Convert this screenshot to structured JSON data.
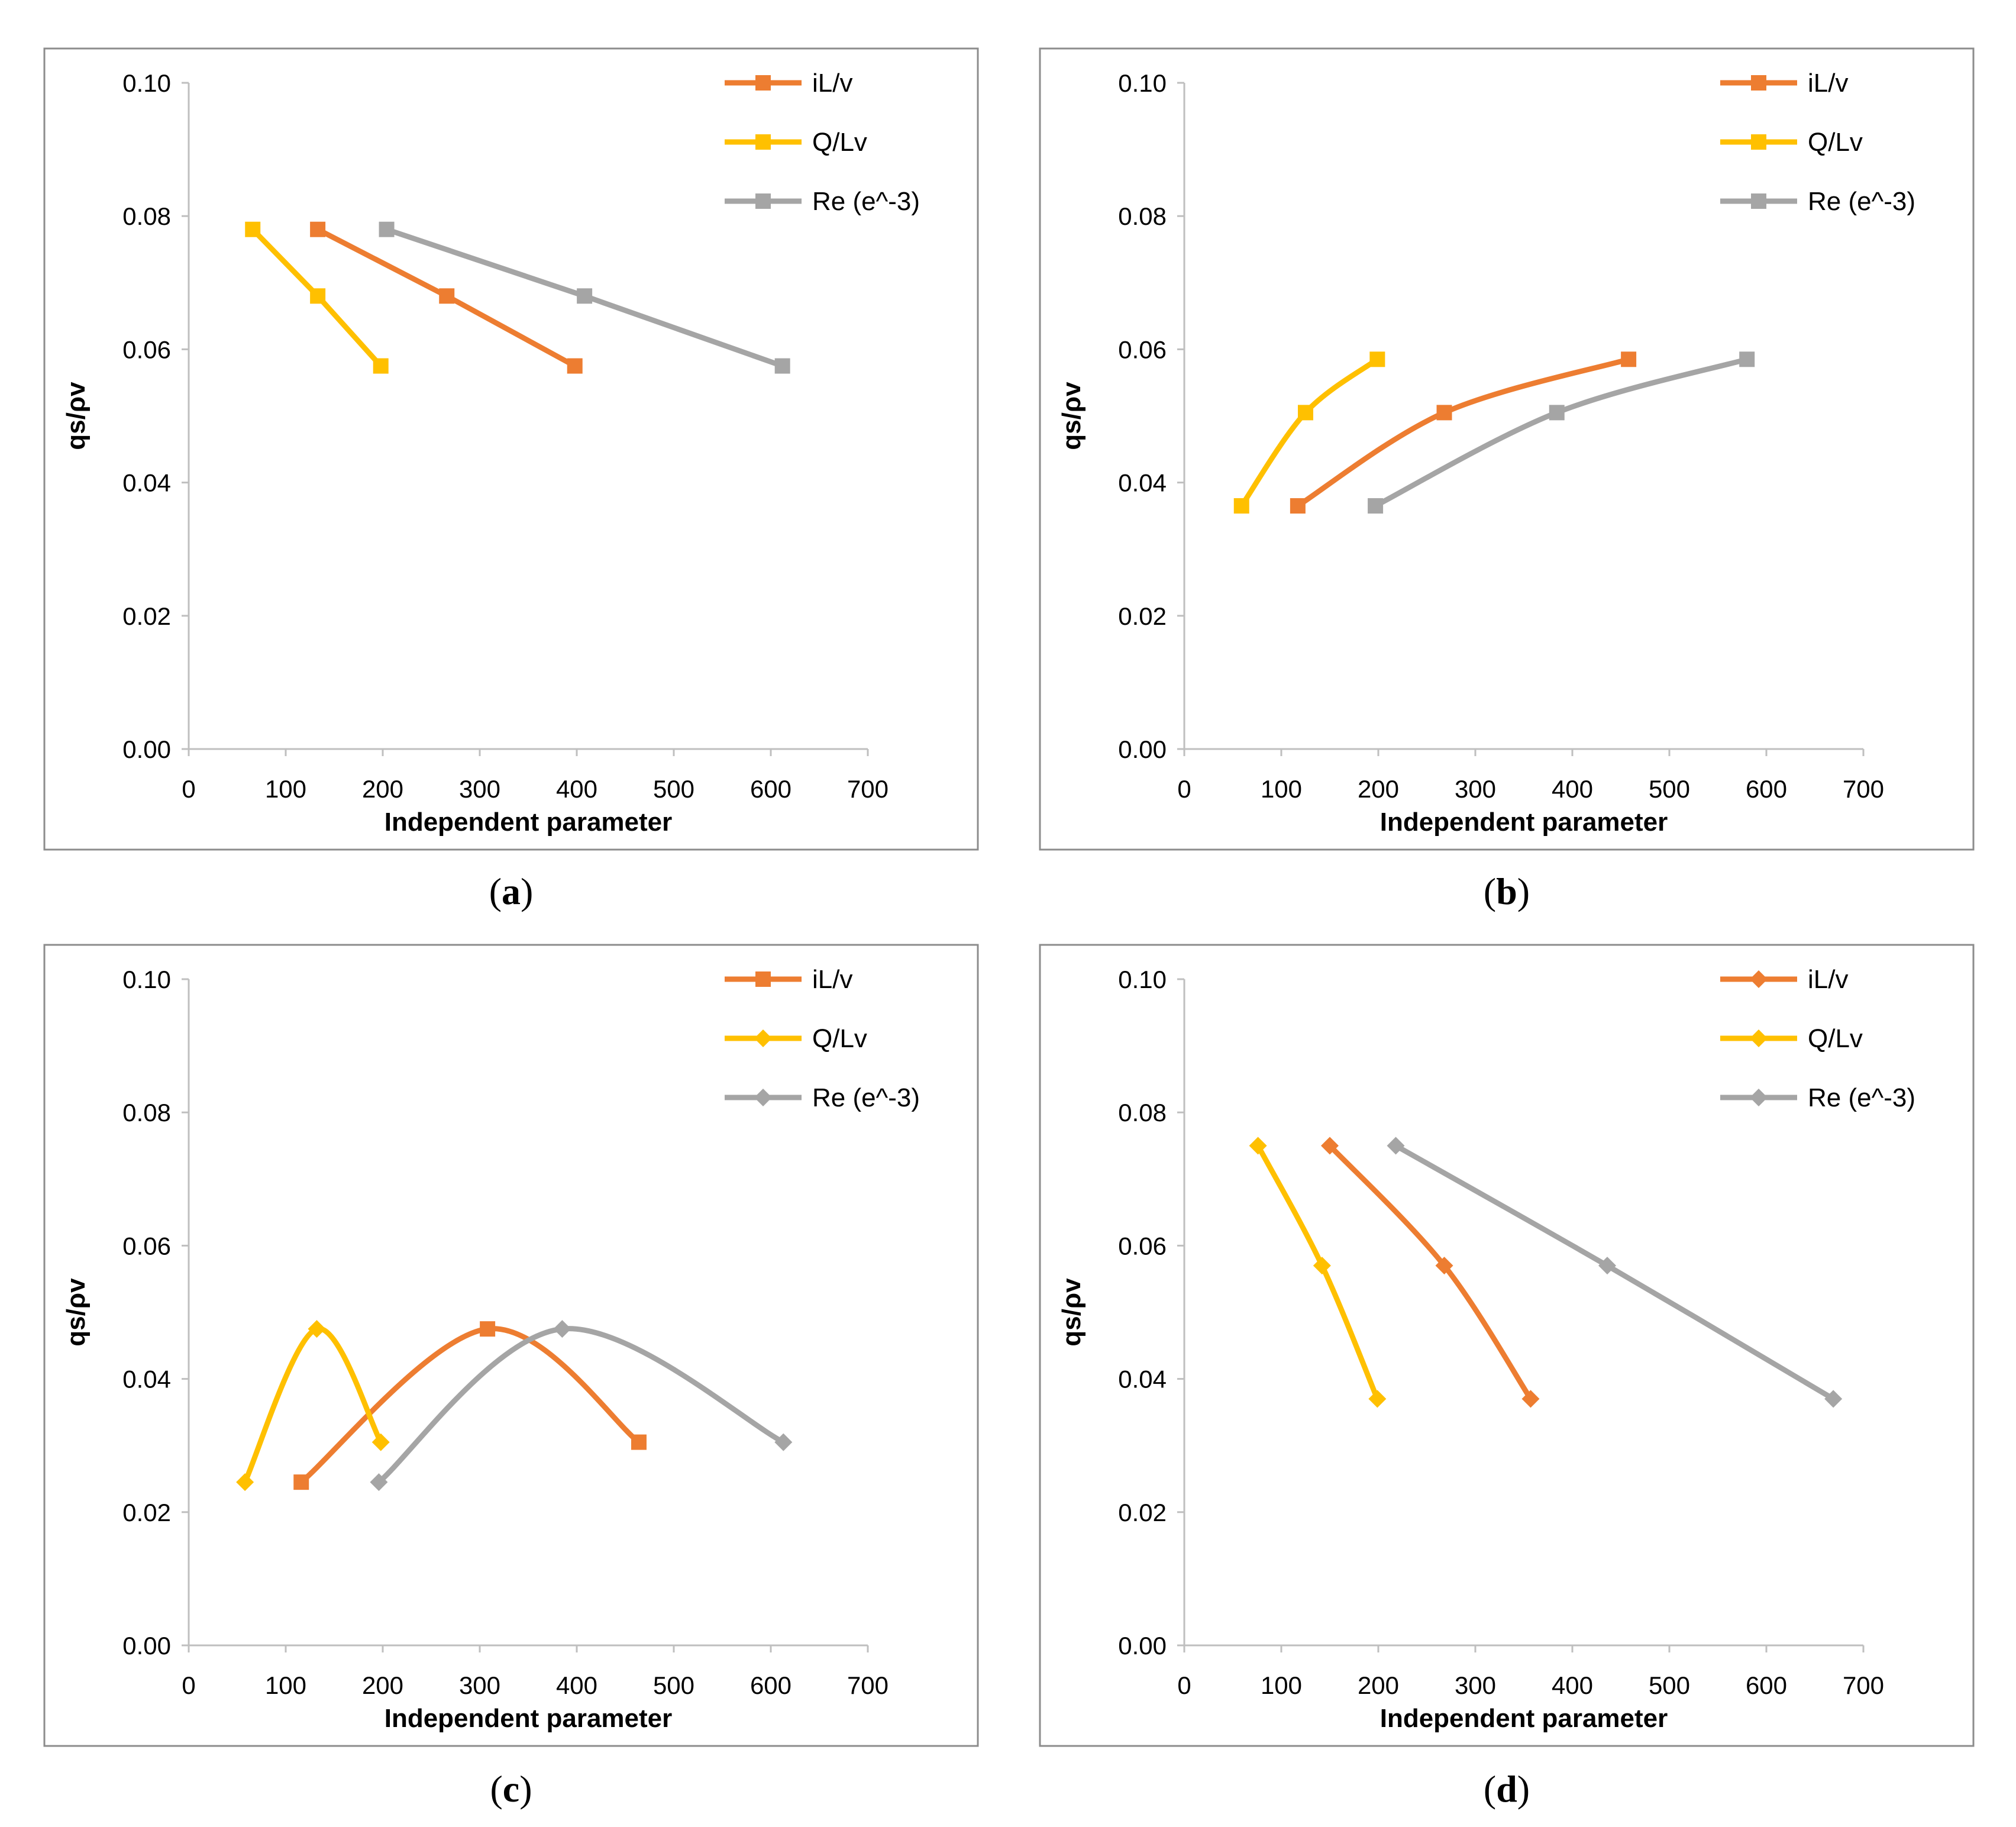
{
  "colors": {
    "iL_v": "#ED7D31",
    "Q_Lv": "#FFC000",
    "Re": "#A5A5A5",
    "frame": "#8C8C8C",
    "axis": "#BFBFBF",
    "text": "#000000"
  },
  "chart_data": [
    {
      "panel": "a",
      "caption": {
        "open": "(",
        "letter": "a",
        "close": ")"
      },
      "type": "line",
      "title": "",
      "xlabel": "Independent parameter",
      "ylabel": "qs/ρv",
      "xlim": [
        0,
        700
      ],
      "ylim": [
        0,
        0.1
      ],
      "xticks": [
        "0",
        "100",
        "200",
        "300",
        "400",
        "500",
        "600",
        "700"
      ],
      "yticks": [
        "0.00",
        "0.02",
        "0.04",
        "0.06",
        "0.08",
        "0.10"
      ],
      "grid": false,
      "legend": "top-right",
      "marker": "square",
      "smooth": false,
      "series": [
        {
          "name": "iL/v",
          "color": "#ED7D31",
          "x": [
            133,
            266,
            398
          ],
          "y": [
            0.078,
            0.068,
            0.0575
          ]
        },
        {
          "name": "Q/Lv",
          "color": "#FFC000",
          "x": [
            66,
            133,
            198
          ],
          "y": [
            0.078,
            0.068,
            0.0575
          ]
        },
        {
          "name": "Re (e^-3)",
          "color": "#A5A5A5",
          "x": [
            204,
            408,
            612
          ],
          "y": [
            0.078,
            0.068,
            0.0575
          ]
        }
      ]
    },
    {
      "panel": "b",
      "caption": {
        "open": "(",
        "letter": "b",
        "close": ")"
      },
      "type": "line",
      "title": "",
      "xlabel": "Independent parameter",
      "ylabel": "qs/ρv",
      "xlim": [
        0,
        700
      ],
      "ylim": [
        0,
        0.1
      ],
      "xticks": [
        "0",
        "100",
        "200",
        "300",
        "400",
        "500",
        "600",
        "700"
      ],
      "yticks": [
        "0.00",
        "0.02",
        "0.04",
        "0.06",
        "0.08",
        "0.10"
      ],
      "grid": false,
      "legend": "top-right",
      "marker": "square",
      "smooth": true,
      "series": [
        {
          "name": "iL/v",
          "color": "#ED7D31",
          "x": [
            117,
            268,
            458
          ],
          "y": [
            0.0365,
            0.0505,
            0.0585
          ]
        },
        {
          "name": "Q/Lv",
          "color": "#FFC000",
          "x": [
            59,
            125,
            199
          ],
          "y": [
            0.0365,
            0.0505,
            0.0585
          ]
        },
        {
          "name": "Re (e^-3)",
          "color": "#A5A5A5",
          "x": [
            197,
            384,
            580
          ],
          "y": [
            0.0365,
            0.0505,
            0.0585
          ]
        }
      ]
    },
    {
      "panel": "c",
      "caption": {
        "open": "(",
        "letter": "c",
        "close": ")"
      },
      "type": "line",
      "title": "",
      "xlabel": "Independent parameter",
      "ylabel": "qs/ρv",
      "xlim": [
        0,
        700
      ],
      "ylim": [
        0,
        0.1
      ],
      "xticks": [
        "0",
        "100",
        "200",
        "300",
        "400",
        "500",
        "600",
        "700"
      ],
      "yticks": [
        "0.00",
        "0.02",
        "0.04",
        "0.06",
        "0.08",
        "0.10"
      ],
      "grid": false,
      "legend": "top-right",
      "marker": "mixed",
      "smooth": true,
      "series": [
        {
          "name": "iL/v",
          "color": "#ED7D31",
          "marker": "square",
          "x": [
            116,
            308,
            464
          ],
          "y": [
            0.0245,
            0.0475,
            0.0305
          ]
        },
        {
          "name": "Q/Lv",
          "color": "#FFC000",
          "marker": "diamond",
          "x": [
            58,
            132,
            198
          ],
          "y": [
            0.0245,
            0.0475,
            0.0305
          ]
        },
        {
          "name": "Re (e^-3)",
          "color": "#A5A5A5",
          "marker": "diamond",
          "x": [
            196,
            385,
            613
          ],
          "y": [
            0.0245,
            0.0475,
            0.0305
          ]
        }
      ]
    },
    {
      "panel": "d",
      "caption": {
        "open": "(",
        "letter": "d",
        "close": ")"
      },
      "type": "line",
      "title": "",
      "xlabel": "Independent parameter",
      "ylabel": "qs/ρv",
      "xlim": [
        0,
        700
      ],
      "ylim": [
        0,
        0.1
      ],
      "xticks": [
        "0",
        "100",
        "200",
        "300",
        "400",
        "500",
        "600",
        "700"
      ],
      "yticks": [
        "0.00",
        "0.02",
        "0.04",
        "0.06",
        "0.08",
        "0.10"
      ],
      "grid": false,
      "legend": "top-right",
      "marker": "diamond",
      "smooth": true,
      "series": [
        {
          "name": "iL/v",
          "color": "#ED7D31",
          "x": [
            150,
            268,
            357
          ],
          "y": [
            0.075,
            0.057,
            0.037
          ]
        },
        {
          "name": "Q/Lv",
          "color": "#FFC000",
          "x": [
            76,
            142,
            199
          ],
          "y": [
            0.075,
            0.057,
            0.037
          ]
        },
        {
          "name": "Re (e^-3)",
          "color": "#A5A5A5",
          "x": [
            218,
            436,
            669
          ],
          "y": [
            0.075,
            0.057,
            0.037
          ]
        }
      ]
    }
  ]
}
